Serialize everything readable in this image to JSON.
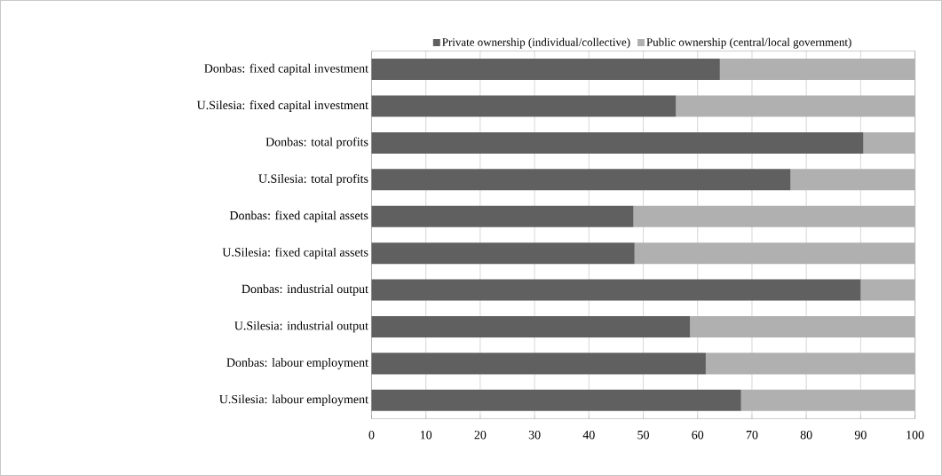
{
  "chart_data": {
    "type": "bar",
    "orientation": "horizontal",
    "stacked": true,
    "categories": [
      "Donbas: fixed capital investment",
      "U.Silesia: fixed capital investment",
      "Donbas: total profits",
      "U.Silesia: total profits",
      "Donbas: fixed capital assets",
      "U.Silesia: fixed capital assets",
      "Donbas: industrial output",
      "U.Silesia: industrial output",
      "Donbas: labour employment",
      "U.Silesia: labour employment"
    ],
    "series": [
      {
        "name": "Private ownership (individual/collective)",
        "color": "#606060",
        "values": [
          64.1,
          56.0,
          90.5,
          77.1,
          48.2,
          48.4,
          90.0,
          58.6,
          61.5,
          68.0
        ]
      },
      {
        "name": "Public ownership (central/local government)",
        "color": "#b0b0b0",
        "values": [
          35.9,
          44.0,
          9.5,
          22.9,
          51.8,
          51.6,
          10.0,
          41.4,
          38.5,
          32.0
        ]
      }
    ],
    "xlim": [
      0,
      100
    ],
    "xticks": [
      0,
      10,
      20,
      30,
      40,
      50,
      60,
      70,
      80,
      90,
      100
    ],
    "grid": "x",
    "legend": "top"
  }
}
